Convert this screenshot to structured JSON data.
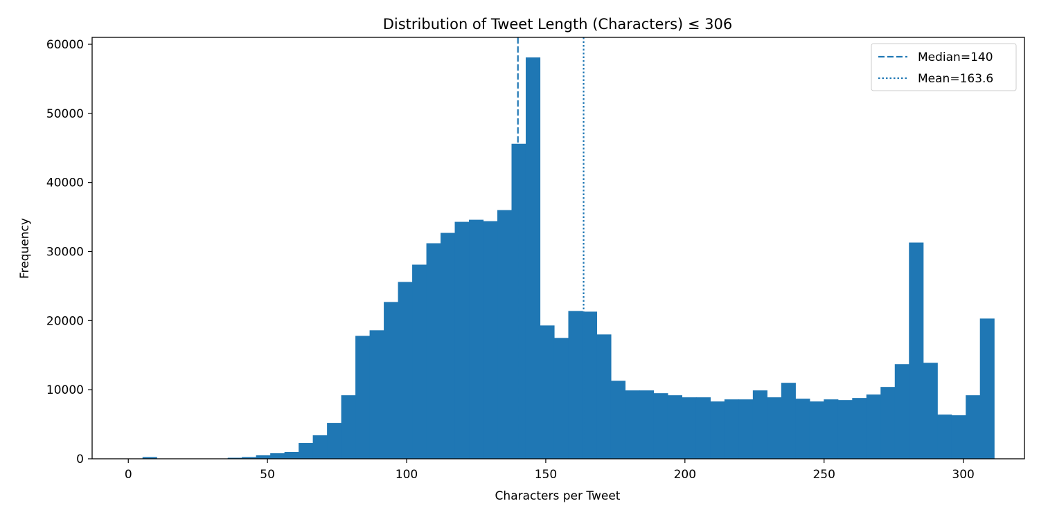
{
  "chart_data": {
    "type": "bar",
    "title": "Distribution of Tweet Length (Characters) ≤ 306",
    "xlabel": "Characters per Tweet",
    "ylabel": "Frequency",
    "xlim": [
      -13,
      322
    ],
    "ylim": [
      0,
      61000
    ],
    "xticks": [
      0,
      50,
      100,
      150,
      200,
      250,
      300
    ],
    "yticks": [
      0,
      10000,
      20000,
      30000,
      40000,
      50000,
      60000
    ],
    "bin_start": 0,
    "bin_width": 5.1,
    "bar_color": "#1f77b4",
    "grid": false,
    "legend_position": "upper right",
    "values": [
      0,
      250,
      0,
      0,
      0,
      0,
      50,
      150,
      250,
      500,
      800,
      1000,
      2300,
      3400,
      5200,
      9200,
      17800,
      18600,
      22700,
      25600,
      28100,
      31200,
      32700,
      34300,
      34600,
      34400,
      36000,
      45600,
      58100,
      19300,
      17500,
      21400,
      21300,
      18000,
      11300,
      9900,
      9900,
      9500,
      9200,
      8900,
      8900,
      8300,
      8600,
      8600,
      9900,
      8900,
      11000,
      8700,
      8300,
      8600,
      8500,
      8800,
      9300,
      10400,
      13700,
      31300,
      13900,
      6400,
      6300,
      9200,
      20300
    ],
    "reference_lines": [
      {
        "label": "Median=140",
        "x": 140,
        "style": "dashed",
        "color": "#1f77b4"
      },
      {
        "label": "Mean=163.6",
        "x": 163.6,
        "style": "dotted",
        "color": "#1f77b4"
      }
    ]
  }
}
